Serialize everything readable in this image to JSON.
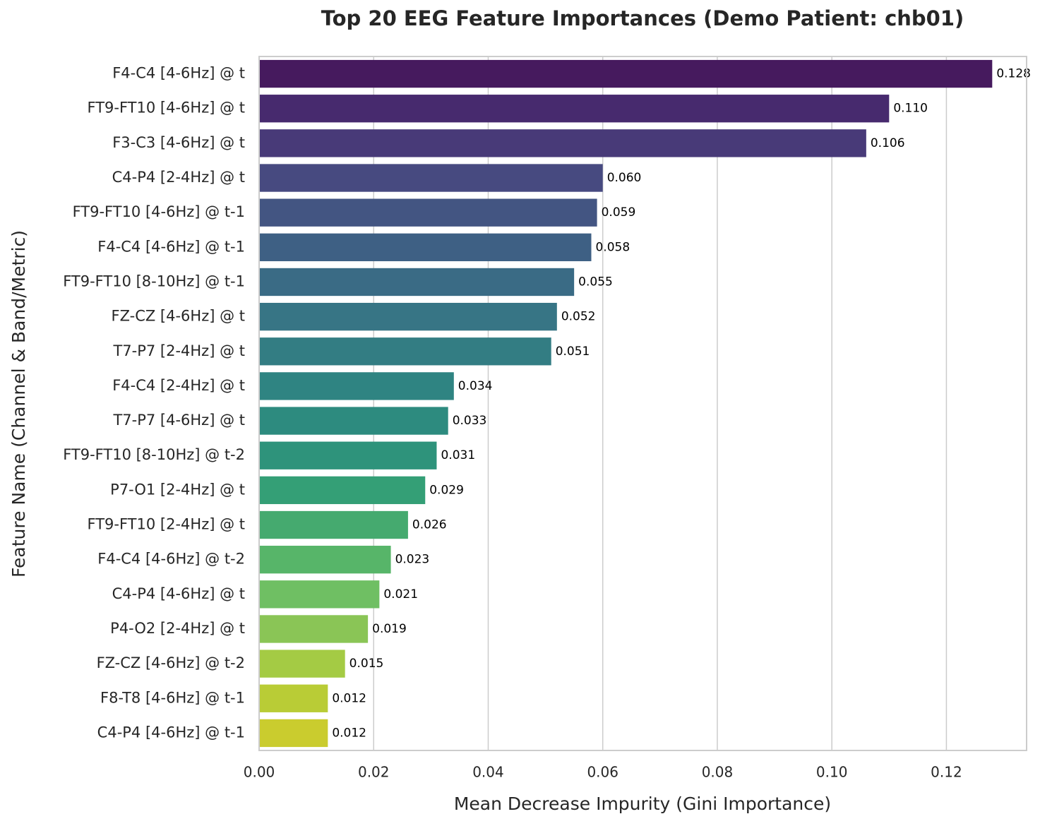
{
  "chart_data": {
    "type": "barh",
    "title": "Top 20 EEG Feature Importances (Demo Patient: chb01)",
    "x_label": "Mean Decrease Impurity (Gini Importance)",
    "y_label": "Feature Name (Channel & Band/Metric)",
    "categories": [
      "F4-C4 [4-6Hz] @ t",
      "FT9-FT10 [4-6Hz] @ t",
      "F3-C3 [4-6Hz] @ t",
      "C4-P4 [2-4Hz] @ t",
      "FT9-FT10 [4-6Hz] @ t-1",
      "F4-C4 [4-6Hz] @ t-1",
      "FT9-FT10 [8-10Hz] @ t-1",
      "FZ-CZ [4-6Hz] @ t",
      "T7-P7 [2-4Hz] @ t",
      "F4-C4 [2-4Hz] @ t",
      "T7-P7 [4-6Hz] @ t",
      "FT9-FT10 [8-10Hz] @ t-2",
      "P7-O1 [2-4Hz] @ t",
      "FT9-FT10 [2-4Hz] @ t",
      "F4-C4 [4-6Hz] @ t-2",
      "C4-P4 [4-6Hz] @ t",
      "P4-O2 [2-4Hz] @ t",
      "FZ-CZ [4-6Hz] @ t-2",
      "F8-T8 [4-6Hz] @ t-1",
      "C4-P4 [4-6Hz] @ t-1"
    ],
    "values": [
      0.128,
      0.11,
      0.106,
      0.06,
      0.059,
      0.058,
      0.055,
      0.052,
      0.051,
      0.034,
      0.033,
      0.031,
      0.029,
      0.026,
      0.023,
      0.021,
      0.019,
      0.015,
      0.012,
      0.012
    ],
    "value_labels": [
      "0.128",
      "0.110",
      "0.106",
      "0.060",
      "0.059",
      "0.058",
      "0.055",
      "0.052",
      "0.051",
      "0.034",
      "0.033",
      "0.031",
      "0.029",
      "0.026",
      "0.023",
      "0.021",
      "0.019",
      "0.015",
      "0.012",
      "0.012"
    ],
    "colors": [
      "#461a5e",
      "#472a6e",
      "#483a78",
      "#474a80",
      "#435582",
      "#3e6084",
      "#3a6b85",
      "#377585",
      "#337d83",
      "#2f8482",
      "#2d8b7f",
      "#2e937b",
      "#349f76",
      "#45aa6f",
      "#57b569",
      "#6fbf63",
      "#8ac556",
      "#a4cb44",
      "#b9cc36",
      "#cacc2e"
    ],
    "xlim": [
      0,
      0.134
    ],
    "xticks": [
      {
        "value": 0,
        "label": "0.00"
      },
      {
        "value": 0.02,
        "label": "0.02"
      },
      {
        "value": 0.04,
        "label": "0.04"
      },
      {
        "value": 0.06,
        "label": "0.06"
      },
      {
        "value": 0.08,
        "label": "0.08"
      },
      {
        "value": 0.1,
        "label": "0.10"
      },
      {
        "value": 0.12,
        "label": "0.12"
      }
    ],
    "grid": true
  }
}
